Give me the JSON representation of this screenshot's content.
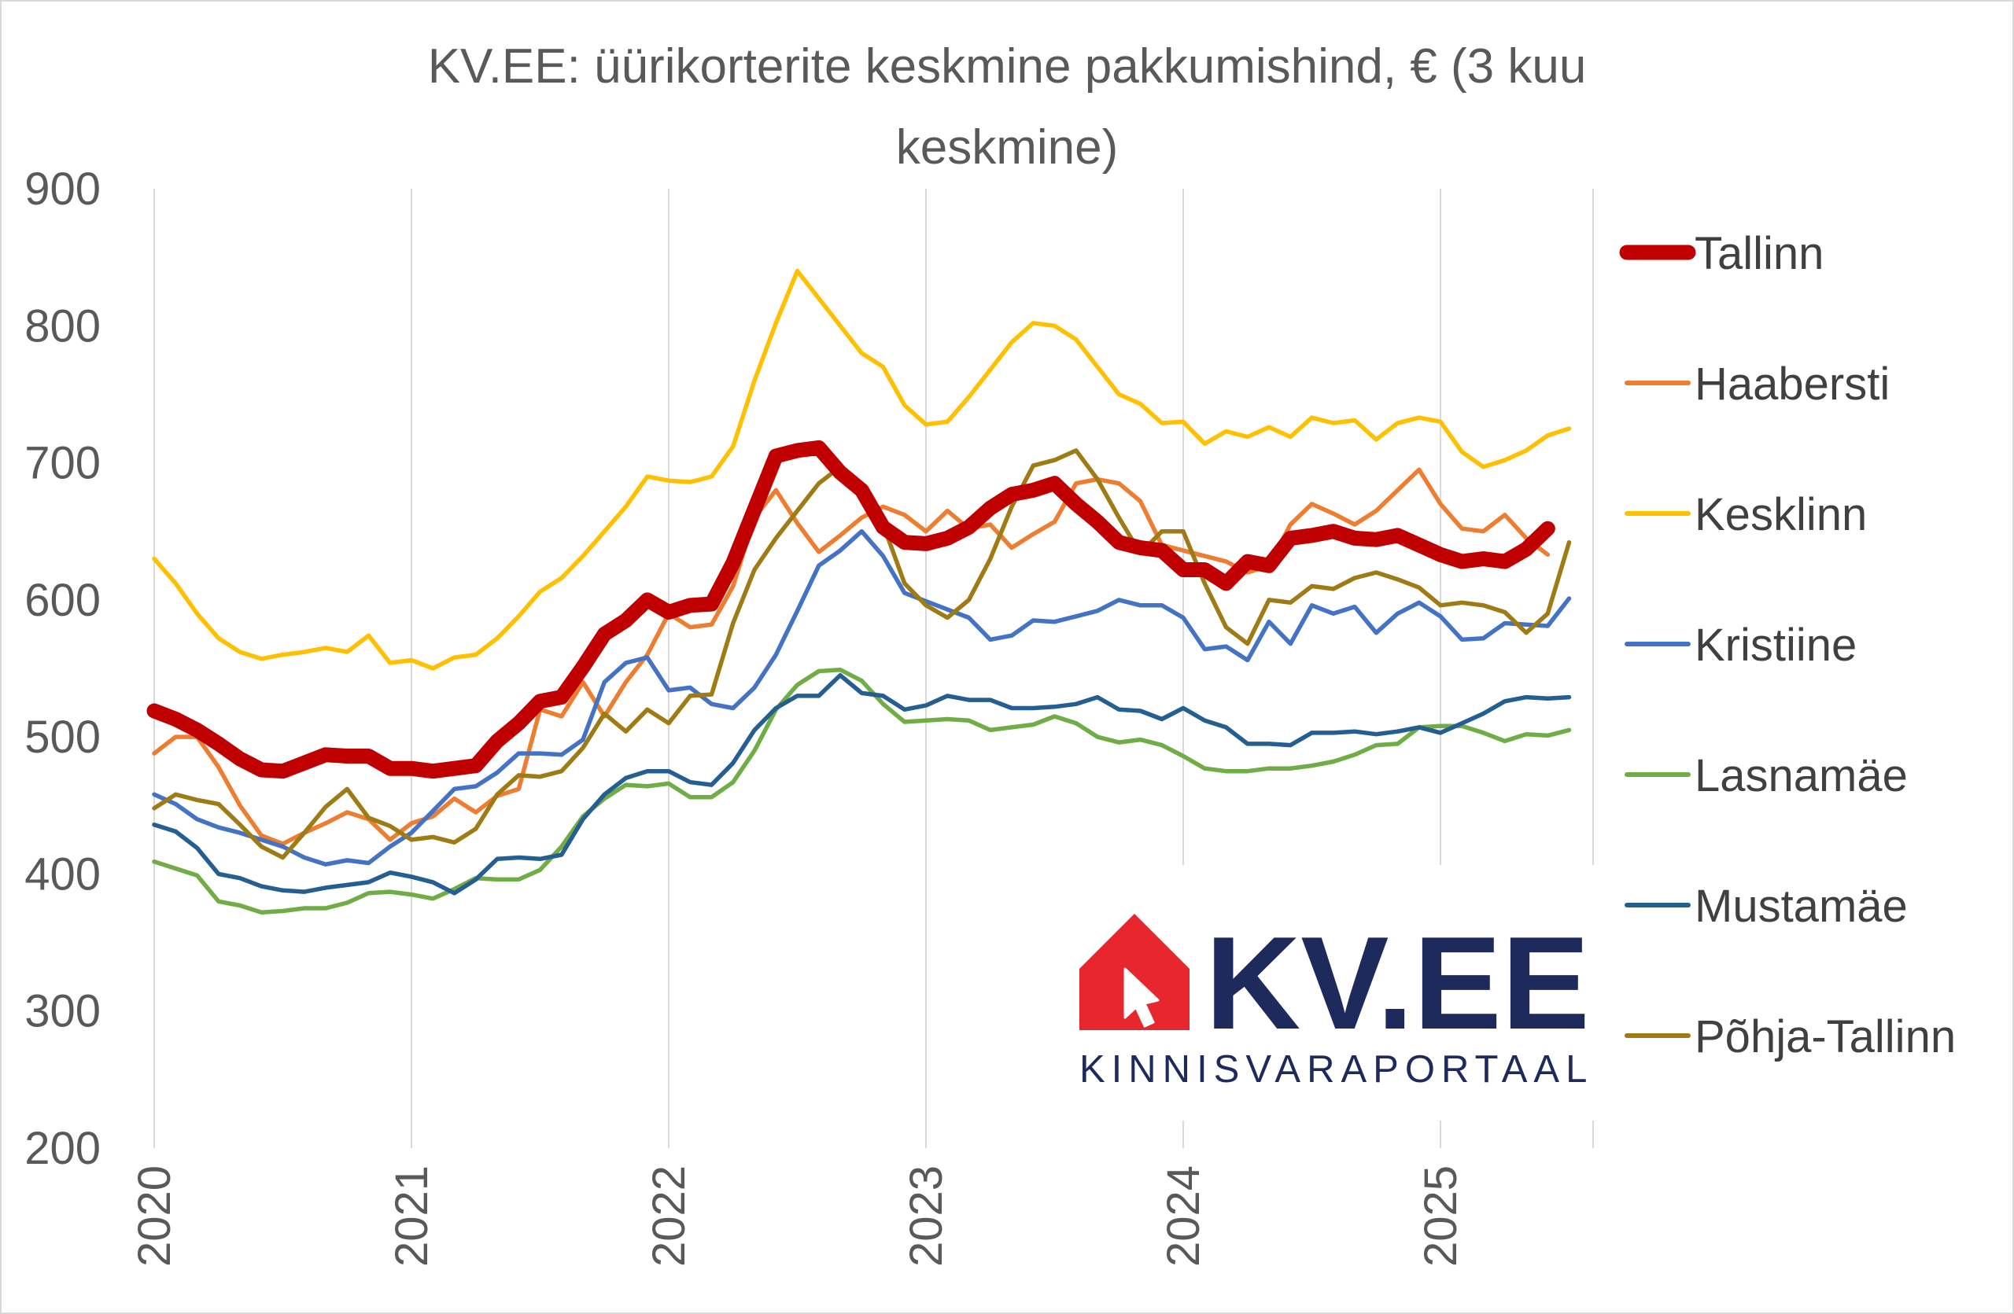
{
  "chart_data": {
    "type": "line",
    "title": "KV.EE: üürikorterite keskmine pakkumishind, € (3 kuu keskmine)",
    "title_lines": [
      "KV.EE: üürikorterite keskmine pakkumishind, € (3 kuu",
      "keskmine)"
    ],
    "xlabel": "",
    "ylabel": "",
    "ylim": [
      200,
      900
    ],
    "yticks": [
      "900",
      "800",
      "700",
      "600",
      "500",
      "400",
      "300",
      "200"
    ],
    "xticks": [
      "2020",
      "2021",
      "2022",
      "2023",
      "2024",
      "2025"
    ],
    "x_start": "2020-01",
    "grid": "vertical",
    "legend_position": "right",
    "series": [
      {
        "name": "Tallinn",
        "color": "#C00000",
        "width": "thick",
        "values": [
          519,
          513,
          505,
          495,
          484,
          476,
          475,
          481,
          487,
          486,
          486,
          477,
          477,
          475,
          477,
          479,
          497,
          510,
          526,
          529,
          551,
          575,
          585,
          600,
          591,
          596,
          597,
          627,
          666,
          705,
          709,
          711,
          693,
          680,
          653,
          642,
          641,
          645,
          653,
          667,
          677,
          680,
          685,
          670,
          657,
          642,
          638,
          636,
          622,
          622,
          612,
          628,
          625,
          645,
          647,
          650,
          645,
          644,
          647,
          640,
          633,
          628,
          630,
          628,
          637,
          652
        ]
      },
      {
        "name": "Haabersti",
        "color": "#ED7D31",
        "width": "normal",
        "values": [
          488,
          500,
          500,
          478,
          450,
          428,
          422,
          430,
          437,
          445,
          440,
          425,
          437,
          442,
          455,
          445,
          457,
          462,
          520,
          515,
          540,
          515,
          540,
          560,
          590,
          580,
          582,
          610,
          660,
          680,
          656,
          635,
          647,
          660,
          668,
          662,
          650,
          665,
          652,
          655,
          638,
          648,
          657,
          685,
          688,
          685,
          672,
          640,
          636,
          632,
          628,
          620,
          625,
          655,
          670,
          663,
          655,
          665,
          680,
          695,
          670,
          652,
          650,
          662,
          645,
          633
        ]
      },
      {
        "name": "Kesklinn",
        "color": "#FFC000",
        "width": "normal",
        "values": [
          630,
          612,
          590,
          572,
          562,
          557,
          560,
          562,
          565,
          562,
          574,
          554,
          556,
          550,
          558,
          560,
          572,
          588,
          606,
          616,
          632,
          650,
          668,
          690,
          687,
          686,
          690,
          712,
          760,
          802,
          840,
          820,
          800,
          780,
          770,
          742,
          728,
          730,
          748,
          768,
          788,
          802,
          800,
          790,
          770,
          750,
          743,
          729,
          730,
          714,
          723,
          719,
          726,
          719,
          733,
          729,
          731,
          717,
          729,
          733,
          730,
          708,
          697,
          702,
          709,
          720,
          725
        ]
      },
      {
        "name": "Kristiine",
        "color": "#4472C4",
        "width": "normal",
        "values": [
          458,
          451,
          440,
          434,
          430,
          425,
          420,
          412,
          407,
          410,
          408,
          420,
          430,
          446,
          462,
          464,
          474,
          488,
          488,
          487,
          498,
          540,
          554,
          558,
          534,
          536,
          524,
          521,
          536,
          560,
          592,
          625,
          636,
          650,
          632,
          605,
          599,
          593,
          587,
          571,
          574,
          585,
          584,
          588,
          592,
          600,
          596,
          596,
          587,
          564,
          566,
          556,
          584,
          568,
          596,
          590,
          595,
          576,
          590,
          598,
          588,
          571,
          572,
          583,
          582,
          581,
          601
        ]
      },
      {
        "name": "Lasnamäe",
        "color": "#70AD47",
        "width": "normal",
        "values": [
          409,
          404,
          399,
          380,
          377,
          372,
          373,
          375,
          375,
          379,
          386,
          387,
          385,
          382,
          389,
          397,
          396,
          396,
          403,
          420,
          442,
          455,
          465,
          464,
          466,
          456,
          456,
          467,
          490,
          520,
          538,
          548,
          549,
          541,
          524,
          511,
          512,
          513,
          512,
          505,
          507,
          509,
          515,
          510,
          500,
          496,
          498,
          494,
          486,
          477,
          475,
          475,
          477,
          477,
          479,
          482,
          487,
          494,
          495,
          507,
          508,
          508,
          503,
          497,
          502,
          501,
          505
        ]
      },
      {
        "name": "Mustamäe",
        "color": "#255E91",
        "width": "normal",
        "values": [
          436,
          431,
          419,
          400,
          397,
          391,
          388,
          387,
          390,
          392,
          394,
          401,
          398,
          394,
          386,
          396,
          411,
          412,
          411,
          414,
          440,
          458,
          470,
          475,
          475,
          467,
          465,
          481,
          505,
          521,
          530,
          530,
          545,
          532,
          530,
          520,
          523,
          530,
          527,
          527,
          521,
          521,
          522,
          524,
          529,
          520,
          519,
          513,
          521,
          512,
          507,
          495,
          495,
          494,
          503,
          503,
          504,
          502,
          504,
          507,
          503,
          510,
          517,
          526,
          529,
          528,
          529
        ]
      },
      {
        "name": "Põhja-Tallinn",
        "color": "#9E7B14",
        "width": "normal",
        "values": [
          448,
          458,
          454,
          451,
          436,
          420,
          412,
          430,
          449,
          462,
          441,
          435,
          425,
          427,
          423,
          433,
          458,
          472,
          471,
          475,
          492,
          517,
          504,
          520,
          510,
          530,
          531,
          583,
          622,
          645,
          665,
          685,
          697,
          678,
          655,
          612,
          596,
          587,
          600,
          630,
          668,
          698,
          702,
          709,
          688,
          660,
          634,
          650,
          650,
          612,
          580,
          568,
          600,
          598,
          610,
          608,
          616,
          620,
          615,
          609,
          596,
          598,
          596,
          591,
          576,
          590,
          642
        ]
      }
    ]
  },
  "logo": {
    "brand": "KV.EE",
    "tagline": "KINNISVARAPORTAAL",
    "house_color": "#E8262E",
    "text_color": "#1F2A5C"
  }
}
